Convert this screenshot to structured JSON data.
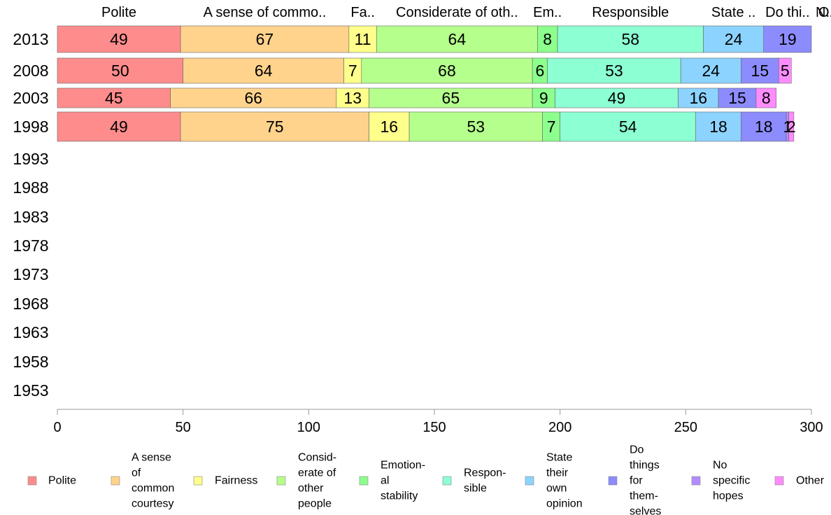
{
  "chart_data": {
    "type": "bar",
    "orientation": "horizontal",
    "stacked": true,
    "xlim": [
      0,
      300
    ],
    "x_ticks": [
      0,
      50,
      100,
      150,
      200,
      250,
      300
    ],
    "categories": [
      "2013",
      "2008",
      "2003",
      "1998",
      "1993",
      "1988",
      "1983",
      "1978",
      "1973",
      "1968",
      "1963",
      "1958",
      "1953"
    ],
    "series": [
      {
        "name": "Polite",
        "color": "#ff8c8c",
        "values": [
          49,
          50,
          45,
          49,
          null,
          null,
          null,
          null,
          null,
          null,
          null,
          null,
          null
        ]
      },
      {
        "name": "A sense of common courtesy",
        "color": "#ffd38c",
        "values": [
          67,
          64,
          66,
          75,
          null,
          null,
          null,
          null,
          null,
          null,
          null,
          null,
          null
        ]
      },
      {
        "name": "Fairness",
        "color": "#ffff8c",
        "values": [
          11,
          7,
          13,
          16,
          null,
          null,
          null,
          null,
          null,
          null,
          null,
          null,
          null
        ]
      },
      {
        "name": "Considerate of other people",
        "color": "#b5ff8c",
        "values": [
          64,
          68,
          65,
          53,
          null,
          null,
          null,
          null,
          null,
          null,
          null,
          null,
          null
        ]
      },
      {
        "name": "Emotional stability",
        "color": "#8cff8c",
        "values": [
          8,
          6,
          9,
          7,
          null,
          null,
          null,
          null,
          null,
          null,
          null,
          null,
          null
        ]
      },
      {
        "name": "Responsible",
        "color": "#8cffd3",
        "values": [
          58,
          53,
          49,
          54,
          null,
          null,
          null,
          null,
          null,
          null,
          null,
          null,
          null
        ]
      },
      {
        "name": "State their own opinion",
        "color": "#8cd3ff",
        "values": [
          24,
          24,
          16,
          18,
          null,
          null,
          null,
          null,
          null,
          null,
          null,
          null,
          null
        ]
      },
      {
        "name": "Do things for themselves",
        "color": "#8c8cff",
        "values": [
          19,
          15,
          15,
          18,
          null,
          null,
          null,
          null,
          null,
          null,
          null,
          null,
          null
        ]
      },
      {
        "name": "No specific hopes",
        "color": "#b58cff",
        "values": [
          0,
          0,
          0,
          1,
          null,
          null,
          null,
          null,
          null,
          null,
          null,
          null,
          null
        ]
      },
      {
        "name": "Other",
        "color": "#ff8cff",
        "values": [
          0,
          5,
          8,
          2,
          null,
          null,
          null,
          null,
          null,
          null,
          null,
          null,
          null
        ]
      }
    ],
    "top_labels": [
      "Polite",
      "A sense of commo..",
      "Fa..",
      "Considerate of oth..",
      "Em..",
      "Responsible",
      "State ..",
      "Do thi..",
      "N..",
      "O.."
    ],
    "legend": {
      "position": "bottom",
      "items": [
        [
          "Polite"
        ],
        [
          "A sense",
          "of",
          "common",
          "courtesy"
        ],
        [
          "Fairness"
        ],
        [
          "Consid-",
          "erate of",
          "other",
          "people"
        ],
        [
          "Emotion-",
          "al",
          "stability"
        ],
        [
          "Respon-",
          "sible"
        ],
        [
          "State",
          "their",
          "own",
          "opinion"
        ],
        [
          "Do",
          "things",
          "for",
          "them-",
          "selves"
        ],
        [
          "No",
          "specific",
          "hopes"
        ],
        [
          "Other"
        ]
      ]
    },
    "grid": false
  }
}
